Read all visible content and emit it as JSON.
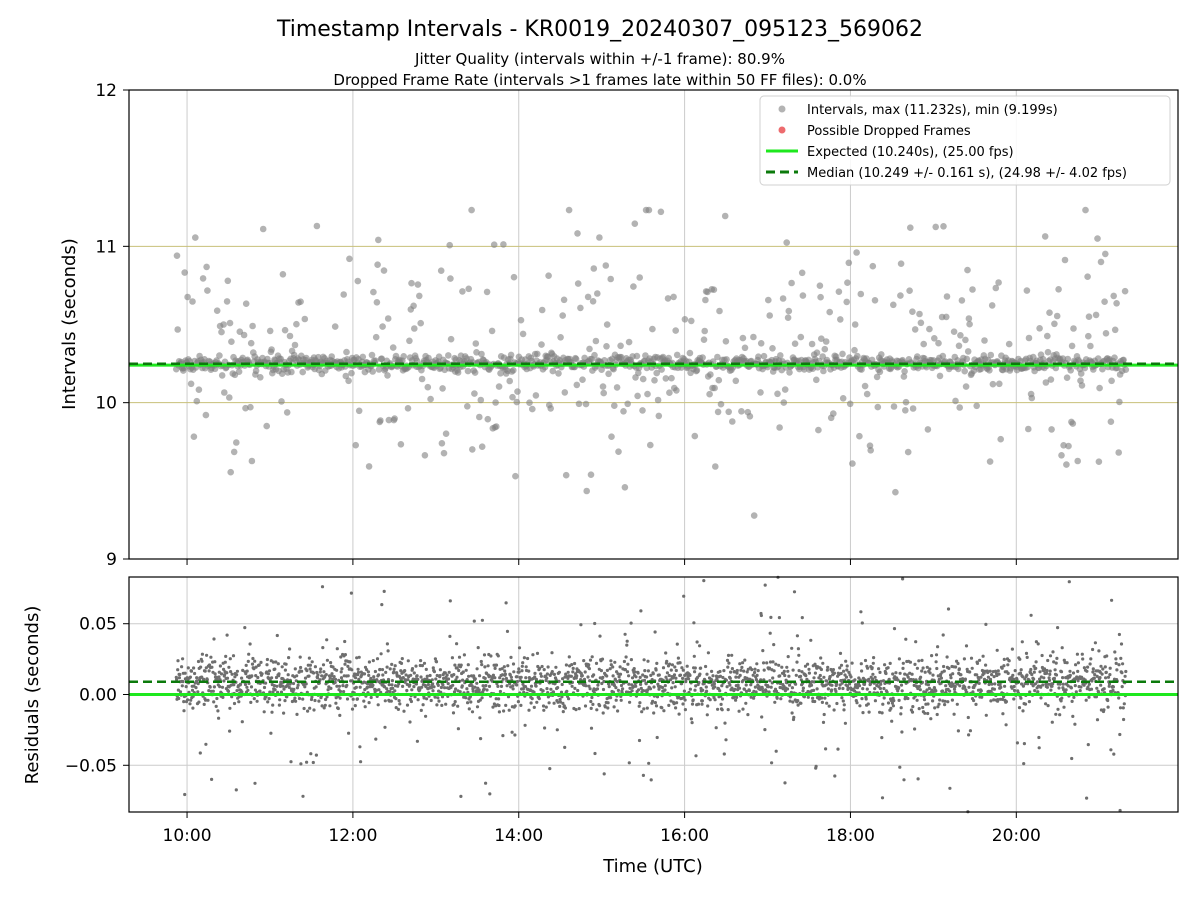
{
  "title": "Timestamp Intervals - KR0019_20240307_095123_569062",
  "subtitle_1": "Jitter Quality (intervals within +/-1 frame): 80.9%",
  "subtitle_2": "Dropped Frame Rate (intervals >1 frames late within 50 FF files): 0.0%",
  "colors": {
    "points": "#808080",
    "dropped": "#e8464a",
    "expected": "#1ee81e",
    "median": "#0b7a0b",
    "frame_band": "#c8c07a",
    "grid": "#cccccc"
  },
  "chart_data": [
    {
      "type": "scatter",
      "name": "intervals",
      "xlabel": "",
      "ylabel": "Intervals (seconds)",
      "xlim": [
        9.3,
        21.95
      ],
      "ylim": [
        9,
        12
      ],
      "yticks": [
        "9",
        "10",
        "11",
        "12"
      ],
      "grid": "vertical",
      "legend_position": "top-right",
      "legend": [
        "Intervals, max (11.232s), min (9.199s)",
        "Possible Dropped Frames",
        "Expected (10.240s), (25.00 fps)",
        "Median (10.249 +/- 0.161 s), (24.98 +/- 4.02 fps)"
      ],
      "expected": 10.24,
      "median": 10.249,
      "frame_band": [
        10.0,
        11.0
      ],
      "max": 11.232,
      "min": 9.199,
      "x_start": 9.87,
      "x_end": 21.32,
      "series": [
        {
          "name": "Intervals, max (11.232s), min (9.199s)",
          "count": 1345,
          "core_center": 10.25,
          "core_spread": 0.025,
          "outlier_fraction": 0.34
        },
        {
          "name": "Possible Dropped Frames",
          "count": 0
        }
      ]
    },
    {
      "type": "scatter",
      "name": "residuals",
      "xlabel": "Time (UTC)",
      "ylabel": "Residuals (seconds)",
      "xlim": [
        9.3,
        21.95
      ],
      "ylim": [
        -0.083,
        0.083
      ],
      "xticks": [
        "10:00",
        "12:00",
        "14:00",
        "16:00",
        "18:00",
        "20:00"
      ],
      "xtick_values": [
        10,
        12,
        14,
        16,
        18,
        20
      ],
      "yticks": [
        "0.05",
        "0.00",
        "−0.05"
      ],
      "ytick_values": [
        0.05,
        0,
        -0.05
      ],
      "grid": "both",
      "expected": 0.0,
      "median": 0.009,
      "series": [
        {
          "name": "residuals",
          "count": 2690,
          "core_center": 0.008,
          "core_spread": 0.009,
          "outlier_fraction": 0.12
        }
      ]
    }
  ]
}
